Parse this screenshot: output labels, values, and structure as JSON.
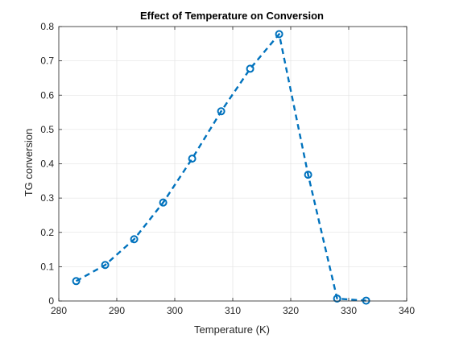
{
  "chart_data": {
    "type": "line",
    "title": "Effect of Temperature on Conversion",
    "xlabel": "Temperature (K)",
    "ylabel": "TG conversion",
    "xlim": [
      280,
      340
    ],
    "ylim": [
      0,
      0.8
    ],
    "xticks": [
      280,
      290,
      300,
      310,
      320,
      330,
      340
    ],
    "yticks": [
      0,
      0.1,
      0.2,
      0.3,
      0.4,
      0.5,
      0.6,
      0.7,
      0.8
    ],
    "grid": true,
    "line_style": "dashed",
    "marker": "circle-open",
    "series": [
      {
        "x": [
          283,
          288,
          293,
          298,
          303,
          308,
          313,
          318,
          323,
          328,
          333
        ],
        "y": [
          0.058,
          0.105,
          0.18,
          0.287,
          0.415,
          0.553,
          0.677,
          0.778,
          0.368,
          0.007,
          0.001
        ],
        "color": "#0072BD"
      }
    ]
  }
}
